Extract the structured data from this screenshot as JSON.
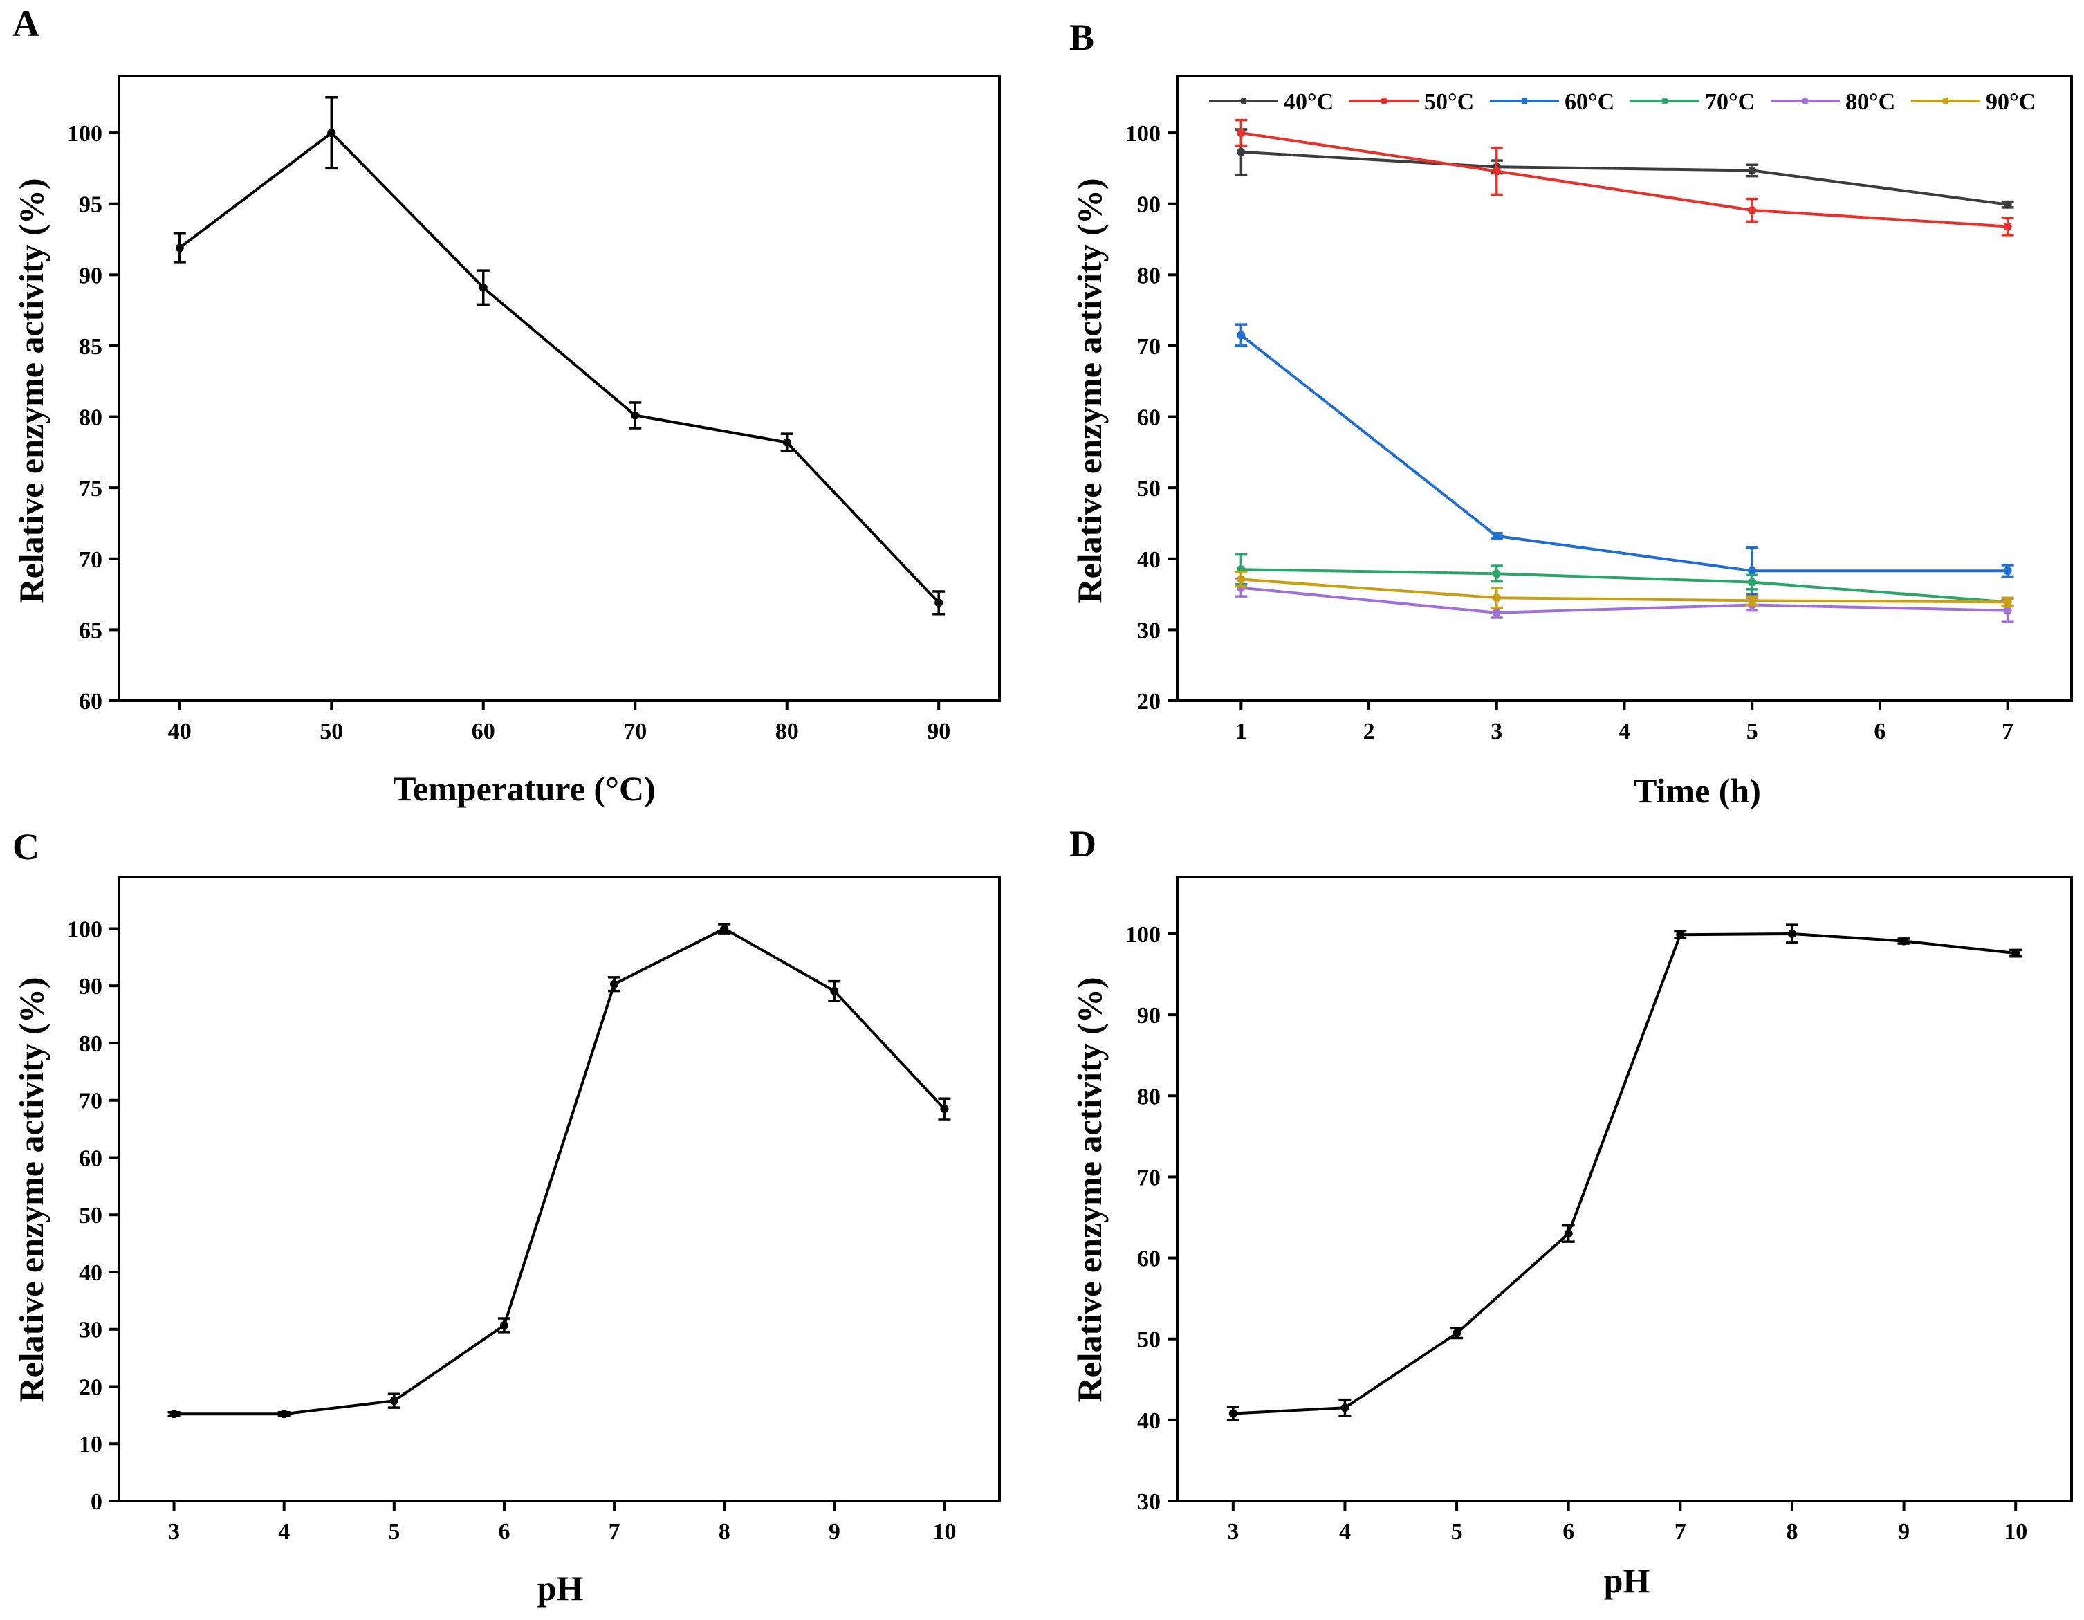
{
  "figure": {
    "panels": [
      "A",
      "B",
      "C",
      "D"
    ]
  },
  "chart_data": [
    {
      "panel": "A",
      "type": "line",
      "xlabel": "Temperature (°C)",
      "ylabel": "Relative enzyme activity (%)",
      "xlim": [
        36,
        94
      ],
      "ylim": [
        60,
        104
      ],
      "xticks": [
        40,
        50,
        60,
        70,
        80,
        90
      ],
      "yticks": [
        60,
        65,
        70,
        75,
        80,
        85,
        90,
        95,
        100
      ],
      "series": [
        {
          "name": "activity",
          "color": "#000000",
          "x": [
            40,
            50,
            60,
            70,
            80,
            90
          ],
          "values": [
            91.9,
            100.0,
            89.1,
            80.1,
            78.2,
            66.9
          ],
          "errors": [
            1.0,
            2.5,
            1.2,
            0.9,
            0.6,
            0.8
          ]
        }
      ]
    },
    {
      "panel": "B",
      "type": "line",
      "xlabel": "Time (h)",
      "ylabel": "Relative enzyme activity (%)",
      "xlim": [
        0.5,
        7.5
      ],
      "ylim": [
        20,
        108
      ],
      "xticks": [
        1,
        2,
        3,
        4,
        5,
        6,
        7
      ],
      "yticks": [
        20,
        30,
        40,
        50,
        60,
        70,
        80,
        90,
        100
      ],
      "legend": "top",
      "series": [
        {
          "name": "40°C",
          "color": "#3d3d3d",
          "x": [
            1,
            3,
            5,
            7
          ],
          "values": [
            97.3,
            95.2,
            94.7,
            89.9
          ],
          "errors": [
            3.2,
            0.9,
            0.8,
            0.4
          ]
        },
        {
          "name": "50°C",
          "color": "#e8312a",
          "x": [
            1,
            3,
            5,
            7
          ],
          "values": [
            100.0,
            94.6,
            89.1,
            86.8
          ],
          "errors": [
            1.8,
            3.3,
            1.6,
            1.2
          ]
        },
        {
          "name": "60°C",
          "color": "#1f6ed6",
          "x": [
            1,
            3,
            5,
            7
          ],
          "values": [
            71.5,
            43.2,
            38.3,
            38.3
          ],
          "errors": [
            1.5,
            0.4,
            3.3,
            0.8
          ]
        },
        {
          "name": "70°C",
          "color": "#2aa66b",
          "x": [
            1,
            3,
            5,
            7
          ],
          "values": [
            38.5,
            37.9,
            36.7,
            33.9
          ],
          "errors": [
            2.1,
            1.1,
            1.0,
            0.5
          ]
        },
        {
          "name": "80°C",
          "color": "#a070d8",
          "x": [
            1,
            3,
            5,
            7
          ],
          "values": [
            35.9,
            32.4,
            33.5,
            32.7
          ],
          "errors": [
            1.2,
            0.7,
            0.8,
            1.6
          ]
        },
        {
          "name": "90°C",
          "color": "#c9a013",
          "x": [
            1,
            3,
            5,
            7
          ],
          "values": [
            37.1,
            34.5,
            34.1,
            33.9
          ],
          "errors": [
            1.0,
            1.4,
            0.6,
            0.6
          ]
        }
      ]
    },
    {
      "panel": "C",
      "type": "line",
      "xlabel": "pH",
      "ylabel": "Relative enzyme activity (%)",
      "xlim": [
        2.5,
        10.5
      ],
      "ylim": [
        0,
        109
      ],
      "xticks": [
        3,
        4,
        5,
        6,
        7,
        8,
        9,
        10
      ],
      "yticks": [
        0,
        10,
        20,
        30,
        40,
        50,
        60,
        70,
        80,
        90,
        100
      ],
      "series": [
        {
          "name": "activity",
          "color": "#000000",
          "x": [
            3,
            4,
            5,
            6,
            7,
            8,
            9,
            10
          ],
          "values": [
            15.2,
            15.2,
            17.5,
            30.7,
            90.3,
            100.0,
            89.1,
            68.5
          ],
          "errors": [
            0.3,
            0.3,
            1.2,
            1.2,
            1.2,
            0.8,
            1.7,
            1.8
          ]
        }
      ]
    },
    {
      "panel": "D",
      "type": "line",
      "xlabel": "pH",
      "ylabel": "Relative enzyme activity (%)",
      "xlim": [
        2.5,
        10.5
      ],
      "ylim": [
        30,
        107
      ],
      "xticks": [
        3,
        4,
        5,
        6,
        7,
        8,
        9,
        10
      ],
      "yticks": [
        30,
        40,
        50,
        60,
        70,
        80,
        90,
        100
      ],
      "series": [
        {
          "name": "activity",
          "color": "#000000",
          "x": [
            3,
            4,
            5,
            6,
            7,
            8,
            9,
            10
          ],
          "values": [
            40.8,
            41.5,
            50.7,
            63.0,
            99.9,
            100.0,
            99.1,
            97.6
          ],
          "errors": [
            0.8,
            1.0,
            0.6,
            1.0,
            0.4,
            1.1,
            0.3,
            0.4
          ]
        }
      ]
    }
  ]
}
